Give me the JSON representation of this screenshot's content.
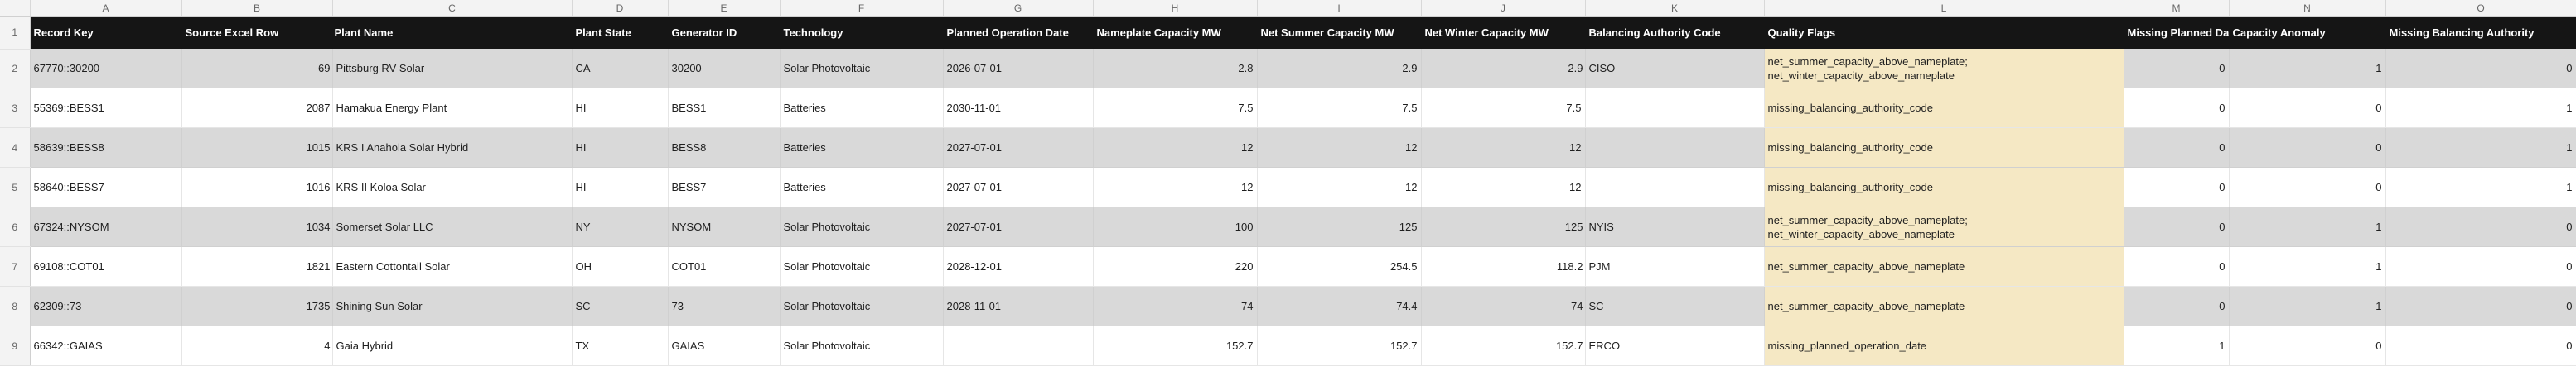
{
  "columns": [
    "A",
    "B",
    "C",
    "D",
    "E",
    "F",
    "G",
    "H",
    "I",
    "J",
    "K",
    "L",
    "M",
    "N",
    "O"
  ],
  "headers": {
    "record_key": "Record Key",
    "source_row": "Source Excel Row",
    "plant_name": "Plant Name",
    "plant_state": "Plant State",
    "generator_id": "Generator ID",
    "technology": "Technology",
    "planned_date": "Planned Operation Date",
    "nameplate": "Nameplate Capacity MW",
    "summer": "Net Summer Capacity MW",
    "winter": "Net Winter Capacity MW",
    "ba_code": "Balancing Authority Code",
    "flags": "Quality Flags",
    "missing_date": "Missing Planned Date",
    "cap_anomaly": "Capacity Anomaly",
    "missing_ba": "Missing Balancing Authority"
  },
  "row_numbers": [
    "1",
    "2",
    "3",
    "4",
    "5",
    "6",
    "7",
    "8",
    "9"
  ],
  "rows": [
    {
      "key": "67770::30200",
      "src": "69",
      "name": "Pittsburg RV Solar",
      "state": "CA",
      "gen": "30200",
      "tech": "Solar Photovoltaic",
      "date": "2026-07-01",
      "np": "2.8",
      "su": "2.9",
      "wi": "2.9",
      "ba": "CISO",
      "flags": "net_summer_capacity_above_nameplate; net_winter_capacity_above_nameplate",
      "m": "0",
      "n": "1",
      "o": "0"
    },
    {
      "key": "55369::BESS1",
      "src": "2087",
      "name": "Hamakua Energy Plant",
      "state": "HI",
      "gen": "BESS1",
      "tech": "Batteries",
      "date": "2030-11-01",
      "np": "7.5",
      "su": "7.5",
      "wi": "7.5",
      "ba": "",
      "flags": "missing_balancing_authority_code",
      "m": "0",
      "n": "0",
      "o": "1"
    },
    {
      "key": "58639::BESS8",
      "src": "1015",
      "name": "KRS I Anahola Solar Hybrid",
      "state": "HI",
      "gen": "BESS8",
      "tech": "Batteries",
      "date": "2027-07-01",
      "np": "12",
      "su": "12",
      "wi": "12",
      "ba": "",
      "flags": "missing_balancing_authority_code",
      "m": "0",
      "n": "0",
      "o": "1"
    },
    {
      "key": "58640::BESS7",
      "src": "1016",
      "name": "KRS II Koloa Solar",
      "state": "HI",
      "gen": "BESS7",
      "tech": "Batteries",
      "date": "2027-07-01",
      "np": "12",
      "su": "12",
      "wi": "12",
      "ba": "",
      "flags": "missing_balancing_authority_code",
      "m": "0",
      "n": "0",
      "o": "1"
    },
    {
      "key": "67324::NYSOM",
      "src": "1034",
      "name": "Somerset Solar LLC",
      "state": "NY",
      "gen": "NYSOM",
      "tech": "Solar Photovoltaic",
      "date": "2027-07-01",
      "np": "100",
      "su": "125",
      "wi": "125",
      "ba": "NYIS",
      "flags": "net_summer_capacity_above_nameplate; net_winter_capacity_above_nameplate",
      "m": "0",
      "n": "1",
      "o": "0"
    },
    {
      "key": "69108::COT01",
      "src": "1821",
      "name": "Eastern Cottontail Solar",
      "state": "OH",
      "gen": "COT01",
      "tech": "Solar Photovoltaic",
      "date": "2028-12-01",
      "np": "220",
      "su": "254.5",
      "wi": "118.2",
      "ba": "PJM",
      "flags": "net_summer_capacity_above_nameplate",
      "m": "0",
      "n": "1",
      "o": "0"
    },
    {
      "key": "62309::73",
      "src": "1735",
      "name": "Shining Sun Solar",
      "state": "SC",
      "gen": "73",
      "tech": "Solar Photovoltaic",
      "date": "2028-11-01",
      "np": "74",
      "su": "74.4",
      "wi": "74",
      "ba": "SC",
      "flags": "net_summer_capacity_above_nameplate",
      "m": "0",
      "n": "1",
      "o": "0"
    },
    {
      "key": "66342::GAIAS",
      "src": "4",
      "name": "Gaia Hybrid",
      "state": "TX",
      "gen": "GAIAS",
      "tech": "Solar Photovoltaic",
      "date": "",
      "np": "152.7",
      "su": "152.7",
      "wi": "152.7",
      "ba": "ERCO",
      "flags": "missing_planned_operation_date",
      "m": "1",
      "n": "0",
      "o": "0"
    }
  ]
}
